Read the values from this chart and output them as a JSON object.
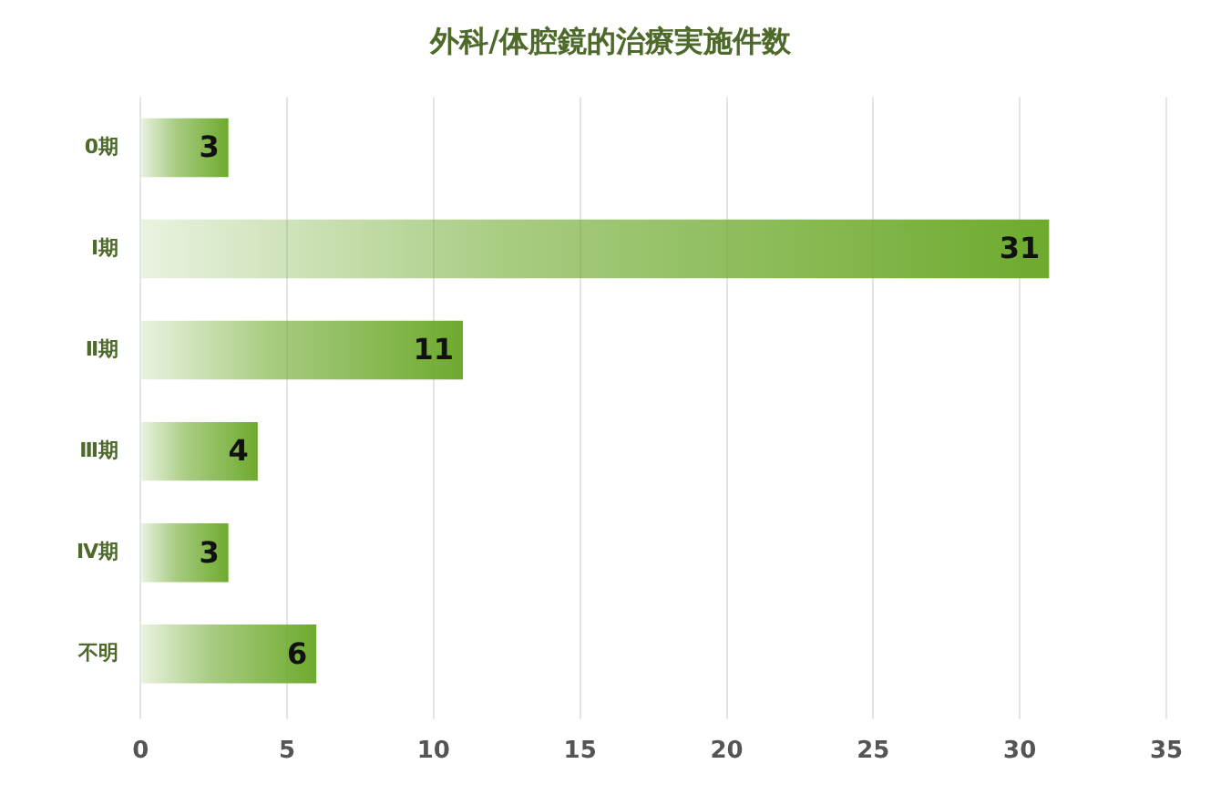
{
  "chart_data": {
    "type": "bar",
    "orientation": "horizontal",
    "title": "外科/体腔鏡的治療実施件数",
    "categories": [
      "0期",
      "Ⅰ期",
      "Ⅱ期",
      "Ⅲ期",
      "Ⅳ期",
      "不明"
    ],
    "values": [
      3,
      31,
      11,
      4,
      3,
      6
    ],
    "color": "#6eaa2e",
    "xlim": [
      0,
      35
    ],
    "xticks": [
      0,
      5,
      10,
      15,
      20,
      25,
      30,
      35
    ],
    "grid": "x",
    "data_labels": true,
    "legend": false
  }
}
